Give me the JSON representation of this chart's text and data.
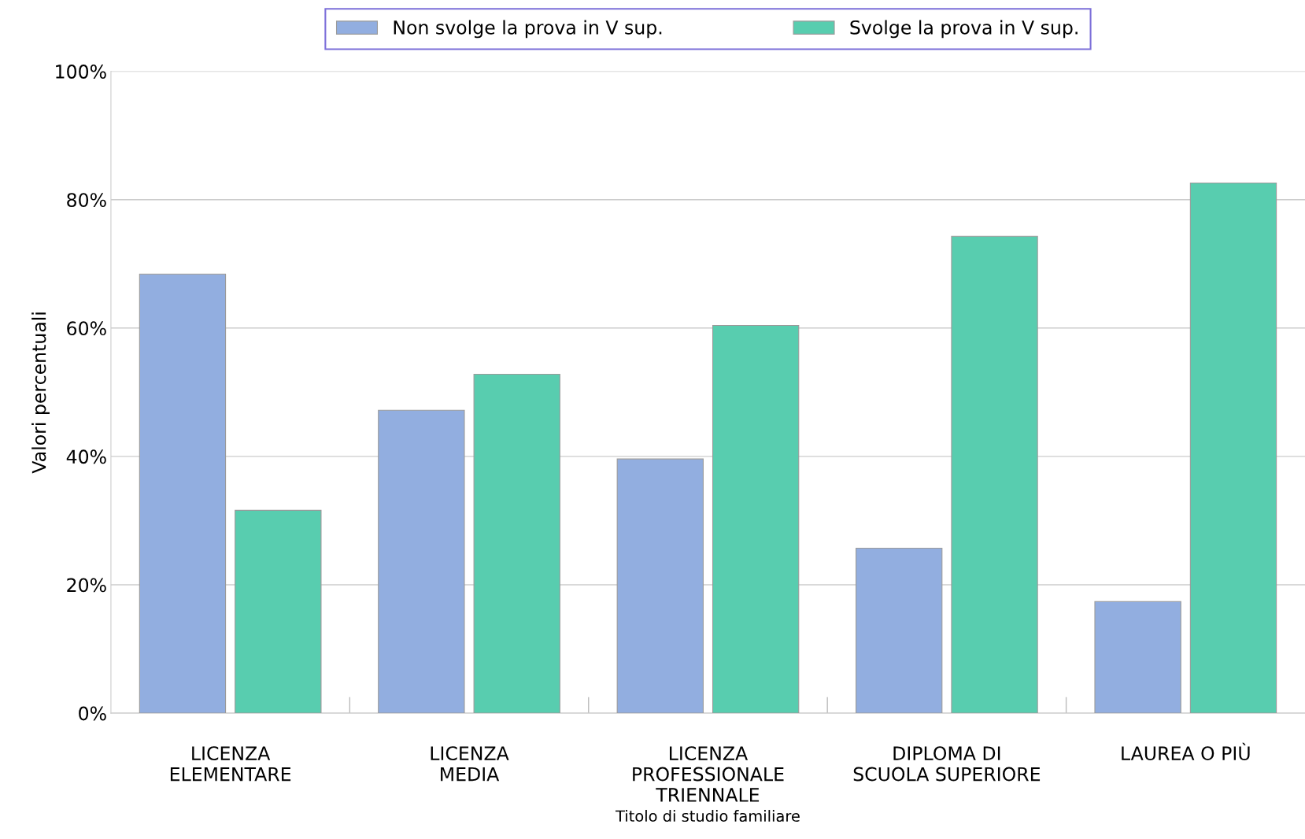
{
  "chart_data": {
    "type": "bar",
    "xlabel": "Titolo di studio familiare",
    "ylabel": "Valori percentuali",
    "categories": [
      "LICENZA\nELEMENTARE",
      "LICENZA\nMEDIA",
      "LICENZA\nPROFESSIONALE\nTRIENNALE",
      "DIPLOMA DI\nSCUOLA SUPERIORE",
      "LAUREA O PIÙ"
    ],
    "series": [
      {
        "name": "Non svolge la prova in V sup.",
        "color": "#92aee0",
        "values": [
          68.4,
          47.2,
          39.6,
          25.7,
          17.4
        ]
      },
      {
        "name": "Svolge la prova in V sup.",
        "color": "#58cdaf",
        "values": [
          31.6,
          52.8,
          60.4,
          74.3,
          82.6
        ]
      }
    ],
    "ylim": [
      0,
      100
    ],
    "yticks": [
      {
        "value": 0,
        "label": "0%"
      },
      {
        "value": 20,
        "label": "20%"
      },
      {
        "value": 40,
        "label": "40%"
      },
      {
        "value": 60,
        "label": "60%"
      },
      {
        "value": 80,
        "label": "80%"
      },
      {
        "value": 100,
        "label": "100%"
      }
    ],
    "grid": "y",
    "legend": "top"
  }
}
